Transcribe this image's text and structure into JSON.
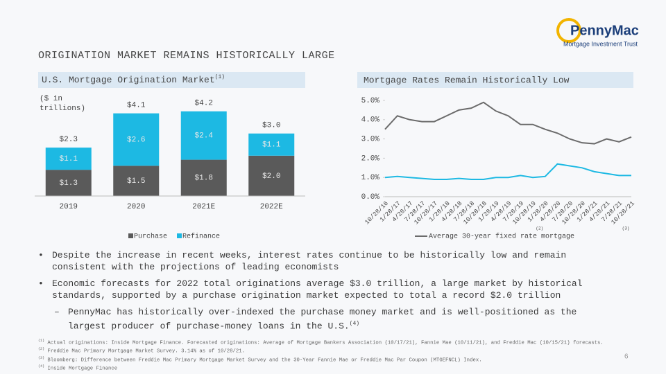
{
  "logo": {
    "name": "PennyMac",
    "tagline": "Mortgage Investment Trust"
  },
  "header": {
    "title": "ORIGINATION MARKET REMAINS HISTORICALLY LARGE"
  },
  "chart_data": [
    {
      "type": "stacked_bar",
      "title": "U.S. Mortgage Origination Market",
      "title_note": "(1)",
      "subtitle": "($ in trillions)",
      "categories": [
        "2019",
        "2020",
        "2021E",
        "2022E"
      ],
      "series": [
        {
          "name": "Purchase",
          "color": "#5a5a5a",
          "values": [
            1.3,
            1.5,
            1.8,
            2.0
          ],
          "value_labels": [
            "$1.3",
            "$1.5",
            "$1.8",
            "$2.0"
          ]
        },
        {
          "name": "Refinance",
          "color": "#1db9e3",
          "values": [
            1.1,
            2.6,
            2.4,
            1.1
          ],
          "value_labels": [
            "$1.1",
            "$2.6",
            "$2.4",
            "$1.1"
          ]
        }
      ],
      "totals": [
        2.3,
        4.1,
        4.2,
        3.0
      ],
      "total_labels": [
        "$2.3",
        "$4.1",
        "$4.2",
        "$3.0"
      ],
      "ylim": [
        0,
        4.5
      ],
      "legend": "bottom"
    },
    {
      "type": "line",
      "title": "Mortgage Rates Remain Historically Low",
      "categories": [
        "10/28/16",
        "1/28/17",
        "4/28/17",
        "7/28/17",
        "10/28/17",
        "1/28/18",
        "4/28/18",
        "7/28/18",
        "10/28/18",
        "1/28/19",
        "4/28/19",
        "7/28/19",
        "10/28/19",
        "1/28/20",
        "4/28/20",
        "7/28/20",
        "10/28/20",
        "1/28/21",
        "4/28/21",
        "7/28/21",
        "10/28/21"
      ],
      "series": [
        {
          "name": "Average 30-year fixed rate mortgage",
          "color": "#6b6b6b",
          "values": [
            3.5,
            4.2,
            4.0,
            3.9,
            3.9,
            4.2,
            4.5,
            4.6,
            4.9,
            4.45,
            4.2,
            3.75,
            3.75,
            3.5,
            3.3,
            3.0,
            2.8,
            2.75,
            3.0,
            2.85,
            3.1
          ]
        },
        {
          "color": "#1db9e3",
          "values": [
            1.0,
            1.05,
            1.0,
            0.95,
            0.9,
            0.9,
            0.95,
            0.9,
            0.9,
            1.0,
            1.0,
            1.1,
            1.0,
            1.05,
            1.7,
            1.6,
            1.5,
            1.3,
            1.2,
            1.1,
            1.1
          ]
        }
      ],
      "ylim": [
        0,
        5
      ],
      "yticks": [
        {
          "value": 0,
          "label": "0.0%"
        },
        {
          "value": 1,
          "label": "1.0%"
        },
        {
          "value": 2,
          "label": "2.0%"
        },
        {
          "value": 3,
          "label": "3.0%"
        },
        {
          "value": 4,
          "label": "4.0%"
        },
        {
          "value": 5,
          "label": "5.0%"
        }
      ],
      "annotations": [
        {
          "text": "(2)",
          "category": 13
        },
        {
          "text": "(3)",
          "category": 20
        }
      ],
      "legend": "bottom"
    }
  ],
  "bullets": [
    {
      "text": "Despite the increase in recent weeks, interest rates continue to be historically low and remain consistent with the projections of leading economists"
    },
    {
      "text": "Economic forecasts for 2022 total originations average $3.0 trillion, a large market by historical standards, supported by a purchase origination market expected to total a record $2.0 trillion",
      "sub": {
        "text": "PennyMac has historically over-indexed the purchase money market and is well-positioned as the largest producer of purchase-money loans in the U.S.",
        "note": "(4)"
      }
    }
  ],
  "footnotes": [
    {
      "note": "(1)",
      "text": "Actual originations: Inside Mortgage Finance. Forecasted originations: Average of Mortgage Bankers Association (10/17/21), Fannie Mae (10/11/21), and Freddie Mac (10/15/21) forecasts."
    },
    {
      "note": "(2)",
      "text": "Freddie Mac Primary Mortgage Market Survey. 3.14% as of 10/28/21."
    },
    {
      "note": "(3)",
      "text": "Bloomberg: Difference between Freddie Mac Primary Mortgage Market Survey and the 30-Year Fannie Mae or Freddie Mac Par Coupon (MTGEFNCL) Index."
    },
    {
      "note": "(4)",
      "text": "Inside Mortgage Finance"
    }
  ],
  "page_number": "6"
}
